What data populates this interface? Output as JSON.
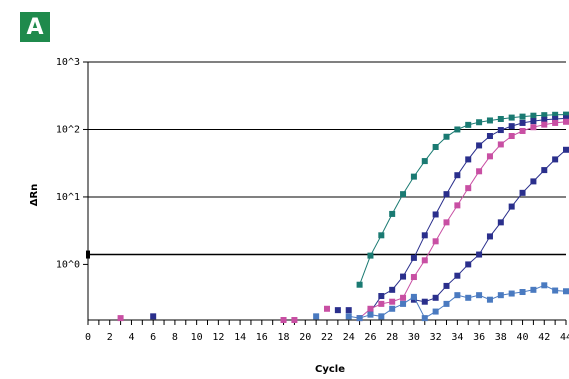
{
  "panel_label": "A",
  "chart_data": {
    "type": "line",
    "xlabel": "Cycle",
    "ylabel": "ΔRn",
    "xlim": [
      0,
      44
    ],
    "y_scale": "log",
    "ylim": [
      0.15,
      1000
    ],
    "x_ticks": [
      0,
      2,
      4,
      6,
      8,
      10,
      12,
      14,
      16,
      18,
      20,
      22,
      24,
      26,
      28,
      30,
      32,
      34,
      36,
      38,
      40,
      42,
      44
    ],
    "x_tick_labels": [
      "0",
      "2",
      "4",
      "6",
      "8",
      "10",
      "12",
      "14",
      "16",
      "18",
      "20",
      "22",
      "24",
      "26",
      "28",
      "30",
      "32",
      "34",
      "36",
      "38",
      "40",
      "42",
      "44"
    ],
    "y_ticks": [
      {
        "value": 1,
        "label": "10^0"
      },
      {
        "value": 10,
        "label": "10^1"
      },
      {
        "value": 100,
        "label": "10^2"
      },
      {
        "value": 1000,
        "label": "10^3"
      }
    ],
    "threshold": 1.4,
    "series": [
      {
        "color": "#1a7a72",
        "x": [
          25,
          26,
          27,
          28,
          29,
          30,
          31,
          32,
          33,
          34,
          35,
          36,
          37,
          38,
          39,
          40,
          41,
          42,
          43,
          44
        ],
        "y": [
          0.5,
          1.35,
          2.7,
          5.6,
          11,
          20,
          34,
          55,
          78,
          100,
          117,
          128,
          136,
          143,
          150,
          155,
          160,
          163,
          165,
          166
        ]
      },
      {
        "color": "#2a2f8c",
        "x": [
          26,
          27,
          28,
          29,
          30,
          31,
          32,
          33,
          34,
          35,
          36,
          37,
          38,
          39,
          40,
          41,
          42,
          43,
          44
        ],
        "y": [
          0.2,
          0.34,
          0.42,
          0.66,
          1.25,
          2.7,
          5.5,
          11,
          21,
          36,
          58,
          80,
          98,
          112,
          125,
          133,
          139,
          143,
          146
        ]
      },
      {
        "color": "#c84fa3",
        "x": [
          25,
          26,
          27,
          28,
          29,
          30,
          31,
          32,
          33,
          34,
          35,
          36,
          37,
          38,
          39,
          40,
          41,
          42,
          43,
          44
        ],
        "y": [
          0.16,
          0.22,
          0.26,
          0.28,
          0.32,
          0.65,
          1.15,
          2.2,
          4.2,
          7.5,
          13.5,
          24,
          40,
          60,
          80,
          95,
          108,
          118,
          125,
          130
        ]
      },
      {
        "color": "#2a2f8c",
        "x": [
          30,
          31,
          32,
          33,
          34,
          35,
          36,
          37,
          38,
          39,
          40,
          41,
          42,
          43,
          44
        ],
        "y": [
          0.3,
          0.28,
          0.32,
          0.48,
          0.68,
          1.0,
          1.4,
          2.6,
          4.2,
          7.2,
          11.5,
          17,
          25,
          36,
          50
        ]
      },
      {
        "color": "#4a7ac0",
        "x": [
          24,
          25,
          26,
          27,
          28,
          29,
          30,
          31,
          32,
          33,
          34,
          35,
          36,
          37,
          38,
          39,
          40,
          41,
          42,
          43,
          44
        ],
        "y": [
          0.17,
          0.16,
          0.18,
          0.17,
          0.22,
          0.26,
          0.33,
          0.16,
          0.2,
          0.26,
          0.35,
          0.32,
          0.35,
          0.3,
          0.35,
          0.37,
          0.39,
          0.42,
          0.49,
          0.41,
          0.4
        ]
      }
    ],
    "scatter_points": [
      {
        "x": 3,
        "y": 0.16,
        "color": "#c84fa3"
      },
      {
        "x": 6,
        "y": 0.17,
        "color": "#2a2f8c"
      },
      {
        "x": 18,
        "y": 0.15,
        "color": "#c84fa3"
      },
      {
        "x": 19,
        "y": 0.15,
        "color": "#c84fa3"
      },
      {
        "x": 21,
        "y": 0.17,
        "color": "#4a7ac0"
      },
      {
        "x": 22,
        "y": 0.22,
        "color": "#c84fa3"
      },
      {
        "x": 23,
        "y": 0.21,
        "color": "#2a2f8c"
      },
      {
        "x": 24,
        "y": 0.21,
        "color": "#2a2f8c"
      }
    ]
  }
}
